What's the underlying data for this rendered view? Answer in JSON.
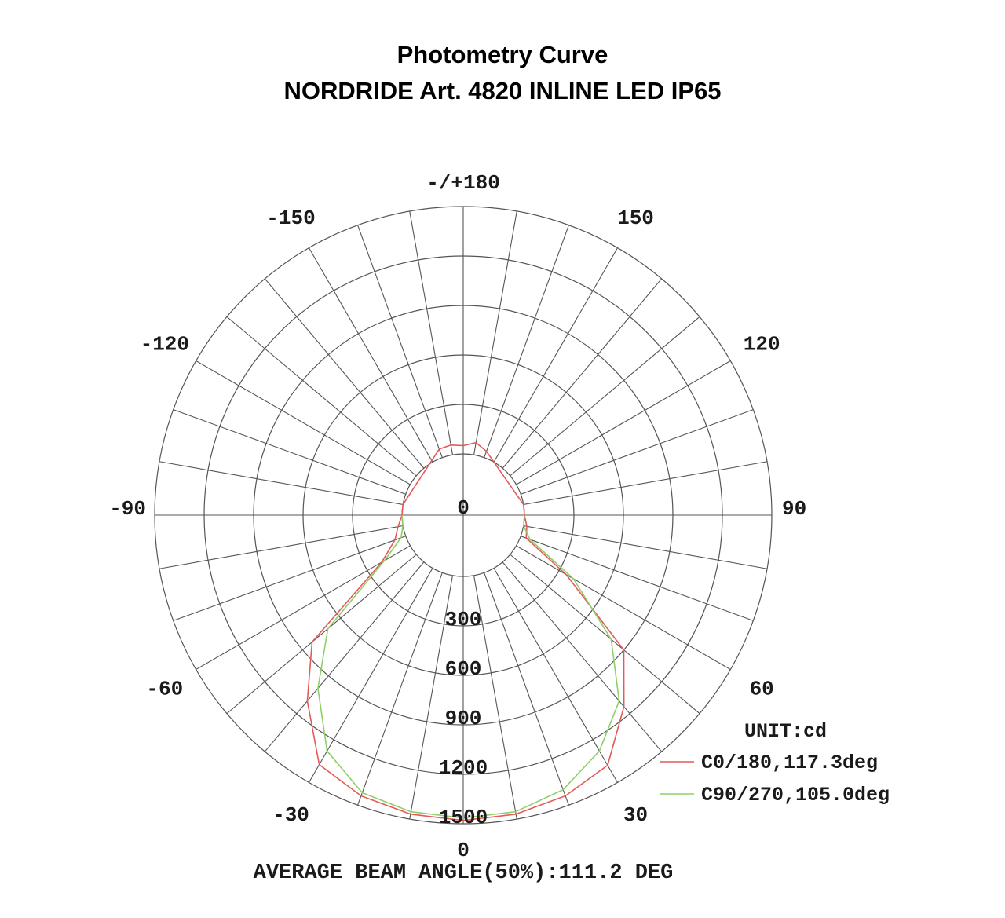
{
  "title_line1": "Photometry Curve",
  "title_line2": "NORDRIDE Art. 4820 INLINE LED IP65",
  "chart_data": {
    "type": "polar",
    "unit_label": "UNIT:cd",
    "angle_labels": [
      "0",
      "30",
      "60",
      "90",
      "120",
      "150",
      "-/+180",
      "-150",
      "-120",
      "-90",
      "-60",
      "-30"
    ],
    "angle_label_values": [
      0,
      30,
      60,
      90,
      120,
      150,
      180,
      -150,
      -120,
      -90,
      -60,
      -30
    ],
    "radial_ticks": [
      "0",
      "300",
      "600",
      "900",
      "1200",
      "1500"
    ],
    "radial_values": [
      0,
      300,
      600,
      900,
      1200,
      1500
    ],
    "rmax": 1500,
    "grid_step_deg": 10,
    "legend_position": "bottom-right",
    "footer": "AVERAGE BEAM ANGLE(50%):111.2 DEG",
    "series": [
      {
        "name": "C0/180,117.3deg",
        "color": "#e45a5a",
        "angles": [
          -180,
          -170,
          -160,
          -100,
          -90,
          -80,
          -70,
          -60,
          -50,
          -40,
          -30,
          -20,
          -10,
          0,
          10,
          20,
          30,
          40,
          50,
          60,
          70,
          80,
          90,
          100,
          160,
          170,
          180
        ],
        "values": [
          50,
          60,
          55,
          0,
          0,
          30,
          70,
          200,
          825,
          1100,
          1375,
          1440,
          1470,
          1480,
          1470,
          1440,
          1380,
          1145,
          900,
          350,
          35,
          20,
          0,
          0,
          40,
          75,
          50
        ]
      },
      {
        "name": "C90/270,105.0deg",
        "color": "#8fcf6a",
        "angles": [
          -90,
          -80,
          -70,
          -60,
          -50,
          -40,
          -30,
          -20,
          -10,
          0,
          10,
          20,
          30,
          40,
          50,
          60,
          70,
          80,
          90
        ],
        "values": [
          0,
          0,
          30,
          180,
          700,
          1000,
          1280,
          1420,
          1455,
          1465,
          1455,
          1400,
          1280,
          1100,
          800,
          400,
          60,
          0,
          0
        ]
      }
    ]
  }
}
